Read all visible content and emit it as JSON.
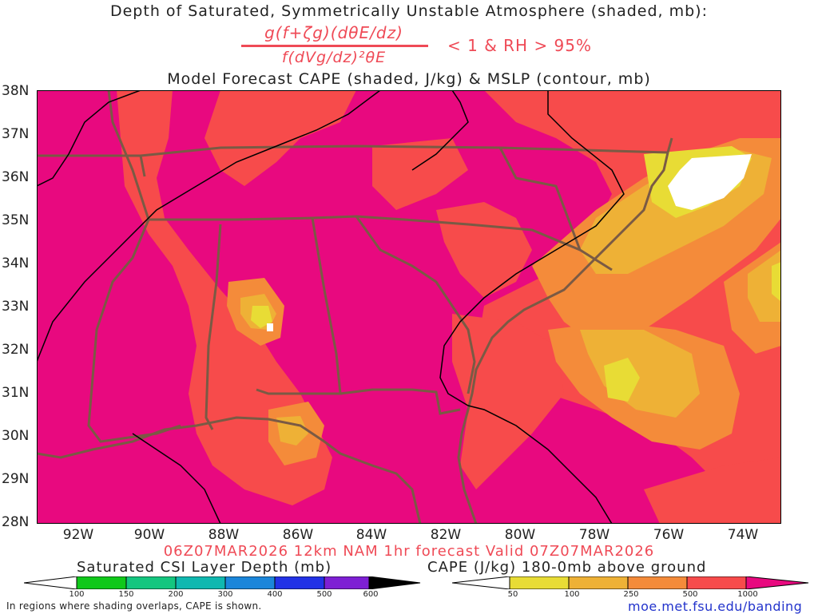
{
  "titles": {
    "line1": "Depth of Saturated, Symmetrically Unstable Atmosphere (shaded, mb):",
    "formula_numerator": "g(f+ζg)(dθE/dz)",
    "formula_denominator": "f(dVg/dz)²θE",
    "condition": "< 1 & RH > 95%",
    "line3": "Model Forecast CAPE (shaded, J/kg) & MSLP (contour, mb)",
    "valid": "06Z07MAR2026 12km NAM 1hr forecast Valid 07Z07MAR2026"
  },
  "map": {
    "lat_labels": [
      "38N",
      "37N",
      "36N",
      "35N",
      "34N",
      "33N",
      "32N",
      "31N",
      "30N",
      "29N",
      "28N"
    ],
    "lon_labels": [
      "92W",
      "90W",
      "88W",
      "86W",
      "84W",
      "82W",
      "80W",
      "78W",
      "76W",
      "74W"
    ],
    "colors": {
      "background_cape": "#e8097f",
      "cape_500_1000": "#f74b4b",
      "cape_250_500": "#f48b3a",
      "cape_100_250": "#eeb136",
      "cape_50_100": "#e8dc35",
      "under_50": "#ffffff",
      "state_lines": "#7a5a44",
      "isobars": "#000000"
    }
  },
  "colorbars": {
    "csi_label": "Saturated CSI Layer Depth (mb)",
    "csi_ticks": [
      "100",
      "150",
      "200",
      "300",
      "400",
      "500",
      "600"
    ],
    "csi_colors": [
      "#ffffff",
      "#10c81a",
      "#14c67f",
      "#10b8b0",
      "#1b86da",
      "#2232e6",
      "#7e1fd4",
      "#000000"
    ],
    "cape_label": "CAPE (J/kg) 180-0mb above ground",
    "cape_ticks": [
      "50",
      "100",
      "250",
      "500",
      "1000"
    ],
    "cape_colors": [
      "#ffffff",
      "#e8dc35",
      "#eeb136",
      "#f48b3a",
      "#f74b4b",
      "#e8097f"
    ]
  },
  "footer": {
    "note": "In regions where shading overlaps, CAPE is shown.",
    "url": "moe.met.fsu.edu/banding"
  }
}
